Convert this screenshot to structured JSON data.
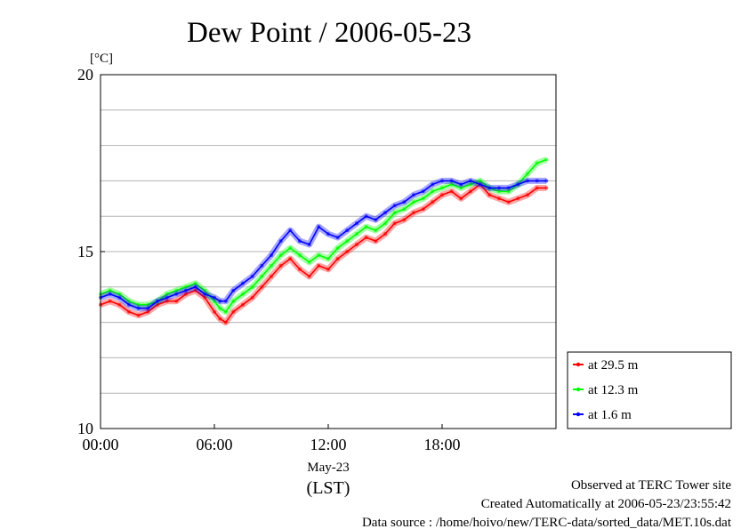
{
  "chart_data": {
    "type": "line",
    "title": "Dew Point / 2006-05-23",
    "ylabel": "[°C]",
    "xlabel_date": "May-23",
    "xlabel_unit": "(LST)",
    "ylim": [
      10,
      20
    ],
    "yticks": [
      "10",
      "15",
      "20"
    ],
    "xlim": [
      0,
      24
    ],
    "xticks": [
      {
        "hour": 0,
        "label": "00:00"
      },
      {
        "hour": 6,
        "label": "06:00"
      },
      {
        "hour": 12,
        "label": "12:00"
      },
      {
        "hour": 18,
        "label": "18:00"
      }
    ],
    "grid": true,
    "legend_position": "bottom-right",
    "series": [
      {
        "name": "at 29.5 m",
        "color": "#ff0000",
        "x": [
          0,
          0.5,
          1,
          1.5,
          2,
          2.5,
          3,
          3.5,
          4,
          4.5,
          5,
          5.5,
          6,
          6.3,
          6.6,
          7,
          7.5,
          8,
          8.5,
          9,
          9.5,
          10,
          10.5,
          11,
          11.5,
          12,
          12.5,
          13,
          13.5,
          14,
          14.5,
          15,
          15.5,
          16,
          16.5,
          17,
          17.5,
          18,
          18.5,
          19,
          19.5,
          20,
          20.5,
          21,
          21.5,
          22,
          22.5,
          23,
          23.5
        ],
        "values": [
          13.5,
          13.6,
          13.5,
          13.3,
          13.2,
          13.3,
          13.5,
          13.6,
          13.6,
          13.8,
          13.9,
          13.7,
          13.3,
          13.1,
          13.0,
          13.3,
          13.5,
          13.7,
          14.0,
          14.3,
          14.6,
          14.8,
          14.5,
          14.3,
          14.6,
          14.5,
          14.8,
          15.0,
          15.2,
          15.4,
          15.3,
          15.5,
          15.8,
          15.9,
          16.1,
          16.2,
          16.4,
          16.6,
          16.7,
          16.5,
          16.7,
          16.9,
          16.6,
          16.5,
          16.4,
          16.5,
          16.6,
          16.8,
          16.8
        ]
      },
      {
        "name": "at 12.3 m",
        "color": "#00ff00",
        "x": [
          0,
          0.5,
          1,
          1.5,
          2,
          2.5,
          3,
          3.5,
          4,
          4.5,
          5,
          5.5,
          6,
          6.3,
          6.6,
          7,
          7.5,
          8,
          8.5,
          9,
          9.5,
          10,
          10.5,
          11,
          11.5,
          12,
          12.5,
          13,
          13.5,
          14,
          14.5,
          15,
          15.5,
          16,
          16.5,
          17,
          17.5,
          18,
          18.5,
          19,
          19.5,
          20,
          20.5,
          21,
          21.5,
          22,
          22.5,
          23,
          23.5
        ],
        "values": [
          13.8,
          13.9,
          13.8,
          13.6,
          13.5,
          13.5,
          13.6,
          13.8,
          13.9,
          14.0,
          14.1,
          13.9,
          13.6,
          13.4,
          13.3,
          13.6,
          13.8,
          14.0,
          14.3,
          14.6,
          14.9,
          15.1,
          14.9,
          14.7,
          14.9,
          14.8,
          15.1,
          15.3,
          15.5,
          15.7,
          15.6,
          15.8,
          16.1,
          16.2,
          16.4,
          16.5,
          16.7,
          16.8,
          16.9,
          16.8,
          16.9,
          17.0,
          16.8,
          16.7,
          16.7,
          16.9,
          17.2,
          17.5,
          17.6
        ]
      },
      {
        "name": "at 1.6 m",
        "color": "#0000ff",
        "x": [
          0,
          0.5,
          1,
          1.5,
          2,
          2.5,
          3,
          3.5,
          4,
          4.5,
          5,
          5.5,
          6,
          6.3,
          6.6,
          7,
          7.5,
          8,
          8.5,
          9,
          9.5,
          10,
          10.5,
          11,
          11.5,
          12,
          12.5,
          13,
          13.5,
          14,
          14.5,
          15,
          15.5,
          16,
          16.5,
          17,
          17.5,
          18,
          18.5,
          19,
          19.5,
          20,
          20.5,
          21,
          21.5,
          22,
          22.5,
          23,
          23.5
        ],
        "values": [
          13.7,
          13.8,
          13.7,
          13.5,
          13.4,
          13.4,
          13.6,
          13.7,
          13.8,
          13.9,
          14.0,
          13.8,
          13.7,
          13.6,
          13.6,
          13.9,
          14.1,
          14.3,
          14.6,
          14.9,
          15.3,
          15.6,
          15.3,
          15.2,
          15.7,
          15.5,
          15.4,
          15.6,
          15.8,
          16.0,
          15.9,
          16.1,
          16.3,
          16.4,
          16.6,
          16.7,
          16.9,
          17.0,
          17.0,
          16.9,
          17.0,
          16.9,
          16.8,
          16.8,
          16.8,
          16.9,
          17.0,
          17.0,
          17.0
        ]
      }
    ]
  },
  "footer": {
    "line1": "Observed at TERC Tower site",
    "line2": "Created Automatically at 2006-05-23/23:55:42",
    "line3": "Data source : /home/hoivo/new/TERC-data/sorted_data/MET.10s.dat"
  }
}
